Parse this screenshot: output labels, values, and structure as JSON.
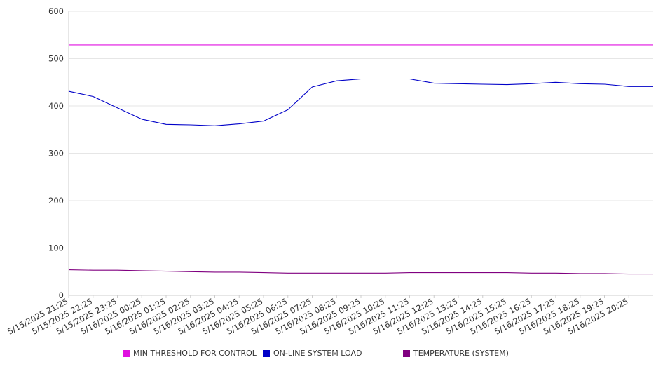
{
  "chart_data": {
    "type": "line",
    "title": "",
    "xlabel": "",
    "ylabel": "",
    "ylim": [
      0,
      600
    ],
    "y_ticks": [
      0,
      100,
      200,
      300,
      400,
      500,
      600
    ],
    "grid": true,
    "legend_position": "bottom",
    "x": [
      "5/15/2025 21:25",
      "5/15/2025 22:25",
      "5/15/2025 23:25",
      "5/16/2025 00:25",
      "5/16/2025 01:25",
      "5/16/2025 02:25",
      "5/16/2025 03:25",
      "5/16/2025 04:25",
      "5/16/2025 05:25",
      "5/16/2025 06:25",
      "5/16/2025 07:25",
      "5/16/2025 08:25",
      "5/16/2025 09:25",
      "5/16/2025 10:25",
      "5/16/2025 11:25",
      "5/16/2025 12:25",
      "5/16/2025 13:25",
      "5/16/2025 14:25",
      "5/16/2025 15:25",
      "5/16/2025 16:25",
      "5/16/2025 17:25",
      "5/16/2025 18:25",
      "5/16/2025 19:25",
      "5/16/2025 20:25"
    ],
    "series": [
      {
        "name": "MIN THRESHOLD FOR CONTROL",
        "color": "#e010e0",
        "values": [
          529,
          529,
          529,
          529,
          529,
          529,
          529,
          529,
          529,
          529,
          529,
          529,
          529,
          529,
          529,
          529,
          529,
          529,
          529,
          529,
          529,
          529,
          529,
          529
        ]
      },
      {
        "name": "ON-LINE SYSTEM LOAD",
        "color": "#0000c8",
        "values": [
          431,
          420,
          396,
          372,
          361,
          360,
          358,
          362,
          368,
          392,
          440,
          453,
          457,
          457,
          457,
          448,
          447,
          446,
          445,
          447,
          450,
          447,
          446,
          441
        ]
      },
      {
        "name": "TEMPERATURE (SYSTEM)",
        "color": "#800080",
        "values": [
          54,
          53,
          53,
          52,
          51,
          50,
          49,
          49,
          48,
          47,
          47,
          47,
          47,
          47,
          48,
          48,
          48,
          48,
          48,
          47,
          47,
          46,
          46,
          45
        ]
      }
    ]
  },
  "legend": {
    "items": [
      {
        "label": "MIN THRESHOLD FOR CONTROL",
        "color": "#e010e0"
      },
      {
        "label": "ON-LINE SYSTEM LOAD",
        "color": "#0000c8"
      },
      {
        "label": "TEMPERATURE (SYSTEM)",
        "color": "#800080"
      }
    ]
  }
}
